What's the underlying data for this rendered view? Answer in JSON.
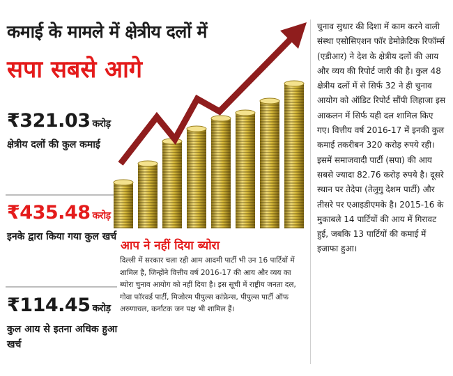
{
  "headline": {
    "line1": "कमाई के मामले में क्षेत्रीय दलों में",
    "line2": "सपा सबसे आगे"
  },
  "stats": [
    {
      "value": "₹321.03",
      "unit": "करोड़",
      "label": "क्षेत्रीय दलों की कुल कमाई"
    },
    {
      "value": "₹435.48",
      "unit": "करोड़",
      "label": "इनके द्वारा किया गया कुल खर्च"
    },
    {
      "value": "₹114.45",
      "unit": "करोड़",
      "label": "कुल आय से इतना अधिक हुआ खर्च"
    }
  ],
  "sidebar": {
    "heading": "आप ने नहीं दिया ब्योरा",
    "body": "दिल्ली में सरकार चला रही आम आदमी पार्टी भी उन 16 पार्टियों में शामिल है, जिन्होंने वित्तीय वर्ष 2016-17 की आय और व्यय का ब्योरा चुनाव आयोग को नहीं दिया है। इस सूची में राष्ट्रीय जनता दल, गोवा फॉरवर्ड पार्टी, मिजोरम पीपुल्स कांफ्रेन्स, पीपुल्स पार्टी ऑफ अरुणाचल, कर्नाटक जन पक्ष भी शामिल हैं।"
  },
  "article": {
    "body": "चुनाव सुधार की दिशा में काम करने वाली संस्था एसोसिएशन फॉर डेमोक्रेटिक रिफॉर्म्स (एडीआर) ने देश के क्षेत्रीय दलों की आय और व्यय की रिपोर्ट जारी की है। कुल 48 क्षेत्रीय दलों में से सिर्फ 32 ने ही चुनाव आयोग को ऑडिट रिपोर्ट सौंपी लिहाजा इस आकलन में सिर्फ यही दल शामिल किए गए। वित्तीय वर्ष 2016-17 में इनकी कुल कमाई तकरीबन 320 करोड़ रुपये रही। इसमें समाजवादी पार्टी (सपा) की आय सबसे ज्यादा 82.76 करोड़ रुपये है। दूसरे स्थान पर तेदेपा (तेलुगु देशम पार्टी) और तीसरे पर एआइडीएमके है। 2015-16 के मुकाबले 14 पार्टियों की आय में गिरावट हुई, जबकि 13 पार्टियों की कमाई में इजाफा हुआ।"
  },
  "colors": {
    "accent_red": "#e41b1b",
    "coin_gold": "#d8ba3a",
    "arrow": "#8f1d1d",
    "text": "#1b1b1b"
  },
  "illustration": {
    "icon": "rising-coin-stacks-with-arrow"
  }
}
